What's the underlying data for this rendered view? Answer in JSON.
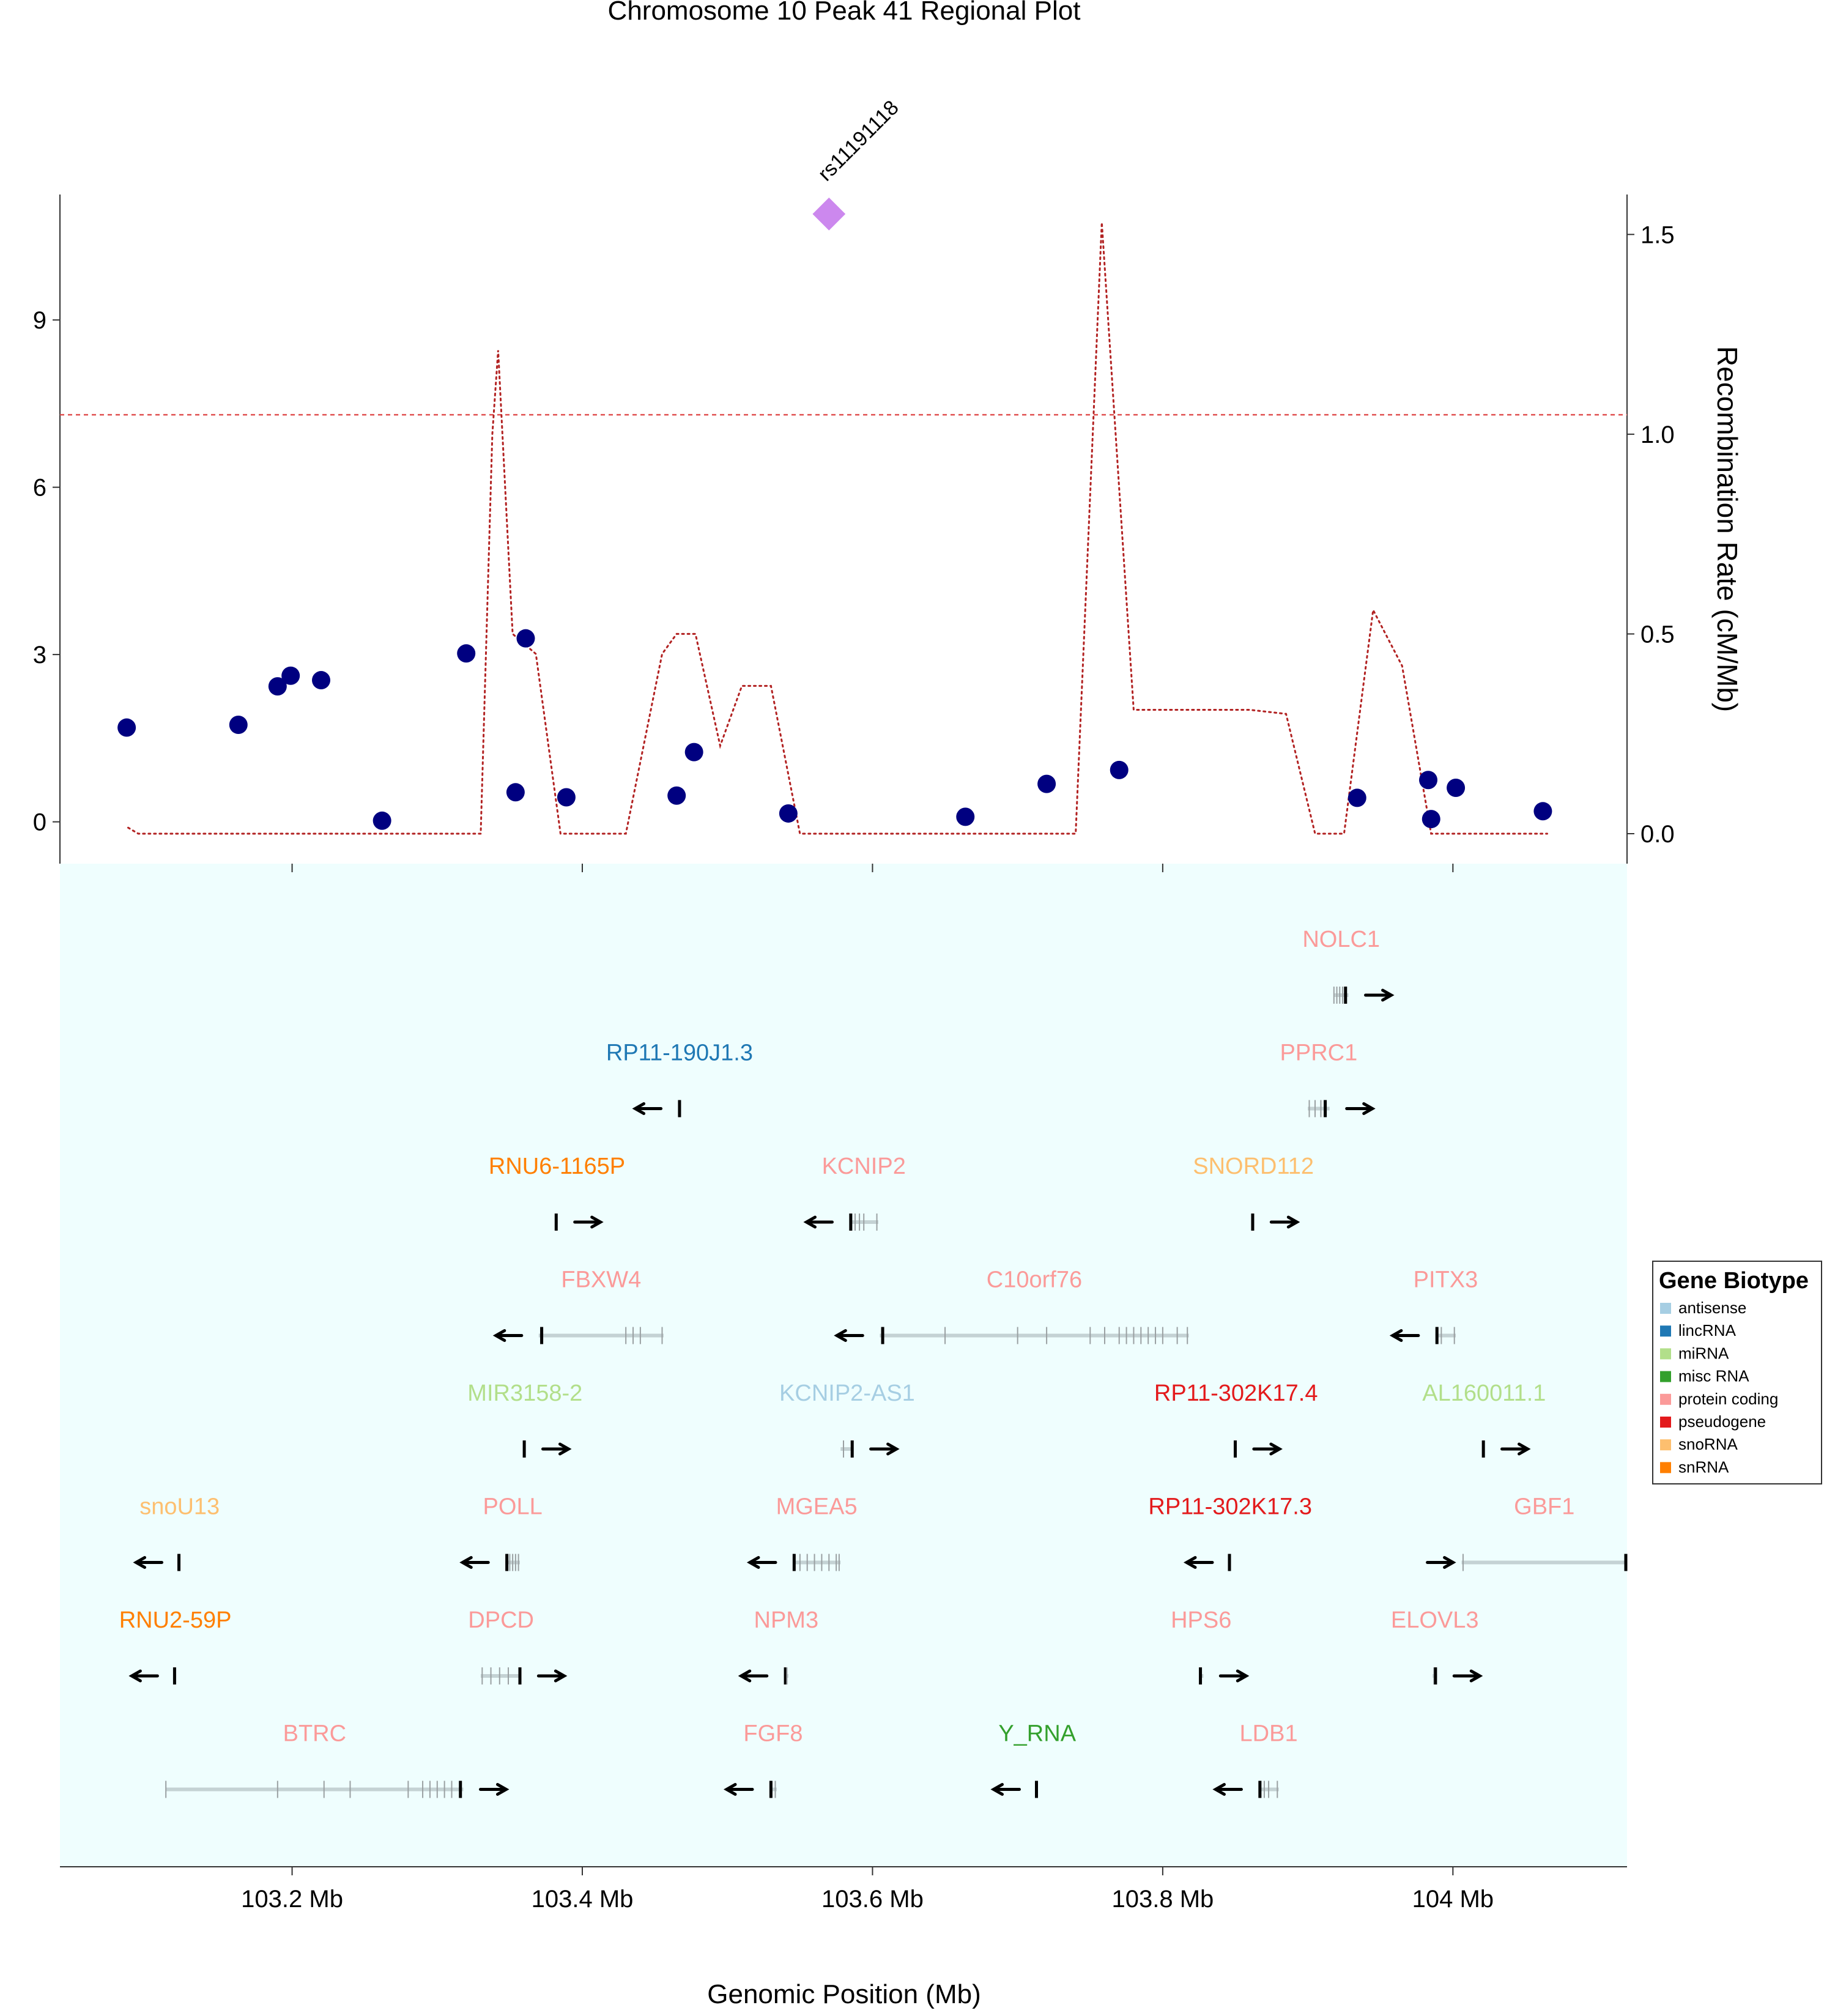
{
  "chart_data": {
    "type": "scatter",
    "title": "Chromosome 10 Peak 41 Regional Plot",
    "xlabel": "Genomic Position (Mb)",
    "y2label": "Recombination Rate (cM/Mb)",
    "xlim": [
      103.04,
      104.12
    ],
    "ylim": [
      -0.75,
      11.25
    ],
    "y2lim": [
      -0.075,
      1.6
    ],
    "x_ticks": [
      103.2,
      103.4,
      103.6,
      103.8,
      104.0
    ],
    "x_tick_labels": [
      "103.2 Mb",
      "103.4 Mb",
      "103.6 Mb",
      "103.8 Mb",
      "104 Mb"
    ],
    "y_ticks": [
      0,
      3,
      6,
      9
    ],
    "y_tick_labels": [
      "0",
      "3",
      "6",
      "9"
    ],
    "y2_ticks": [
      0.0,
      0.5,
      1.0,
      1.5
    ],
    "y2_tick_labels": [
      "0.0",
      "0.5",
      "1.0",
      "1.5"
    ],
    "significance_line": 7.3,
    "lead_snp": {
      "label": "rs11191118",
      "x": 103.57,
      "y": 10.9,
      "color": "#cc88ee"
    },
    "snps": [
      {
        "x": 103.086,
        "y": 1.69
      },
      {
        "x": 103.163,
        "y": 1.74
      },
      {
        "x": 103.19,
        "y": 2.43
      },
      {
        "x": 103.199,
        "y": 2.62
      },
      {
        "x": 103.22,
        "y": 2.54
      },
      {
        "x": 103.262,
        "y": 0.02
      },
      {
        "x": 103.32,
        "y": 3.02
      },
      {
        "x": 103.354,
        "y": 0.53
      },
      {
        "x": 103.361,
        "y": 3.29
      },
      {
        "x": 103.389,
        "y": 0.44
      },
      {
        "x": 103.465,
        "y": 0.47
      },
      {
        "x": 103.477,
        "y": 1.25
      },
      {
        "x": 103.542,
        "y": 0.15
      },
      {
        "x": 103.664,
        "y": 0.09
      },
      {
        "x": 103.72,
        "y": 0.68
      },
      {
        "x": 103.77,
        "y": 0.93
      },
      {
        "x": 103.934,
        "y": 0.43
      },
      {
        "x": 103.983,
        "y": 0.75
      },
      {
        "x": 103.985,
        "y": 0.05
      },
      {
        "x": 104.002,
        "y": 0.61
      },
      {
        "x": 104.062,
        "y": 0.19
      }
    ],
    "recombination": {
      "x": [
        103.087,
        103.094,
        103.33,
        103.338,
        103.342,
        103.352,
        103.368,
        103.385,
        103.4,
        103.43,
        103.455,
        103.465,
        103.478,
        103.495,
        103.51,
        103.53,
        103.55,
        103.74,
        103.758,
        103.78,
        103.86,
        103.885,
        103.905,
        103.925,
        103.945,
        103.965,
        103.985,
        104.065
      ],
      "y": [
        0.015,
        0.0,
        0.0,
        1.0,
        1.21,
        0.5,
        0.45,
        0.0,
        0.0,
        0.0,
        0.45,
        0.5,
        0.5,
        0.22,
        0.37,
        0.37,
        0.0,
        0.0,
        1.53,
        0.31,
        0.31,
        0.3,
        0.0,
        0.0,
        0.56,
        0.42,
        0.0,
        0.0
      ]
    },
    "series": [
      {
        "name": "antisense",
        "color": "#a6cee3"
      },
      {
        "name": "lincRNA",
        "color": "#1f78b4"
      },
      {
        "name": "miRNA",
        "color": "#b2df8a"
      },
      {
        "name": "misc RNA",
        "color": "#33a02c"
      },
      {
        "name": "protein coding",
        "color": "#fb9a99"
      },
      {
        "name": "pseudogene",
        "color": "#e31a1c"
      },
      {
        "name": "snoRNA",
        "color": "#fdbf6f"
      },
      {
        "name": "snRNA",
        "color": "#ff7f00"
      }
    ],
    "legend": {
      "title": "Gene Biotype",
      "position": "right"
    },
    "genes": [
      {
        "name": "NOLC1",
        "biotype": "protein coding",
        "row": 0,
        "start": 103.918,
        "end": 103.928,
        "strand": "+",
        "exons": [
          103.918,
          103.92,
          103.922,
          103.924,
          103.926
        ]
      },
      {
        "name": "RP11-190J1.3",
        "biotype": "lincRNA",
        "row": 1,
        "start": 103.466,
        "end": 103.468,
        "strand": "-",
        "exons": [
          103.467
        ]
      },
      {
        "name": "PPRC1",
        "biotype": "protein coding",
        "row": 1,
        "start": 103.9,
        "end": 103.915,
        "strand": "+",
        "exons": [
          103.901,
          103.905,
          103.909,
          103.912
        ]
      },
      {
        "name": "RNU6-1165P",
        "biotype": "snRNA",
        "row": 2,
        "start": 103.382,
        "end": 103.383,
        "strand": "+",
        "exons": [
          103.382
        ]
      },
      {
        "name": "KCNIP2",
        "biotype": "protein coding",
        "row": 2,
        "start": 103.584,
        "end": 103.604,
        "strand": "-",
        "exons": [
          103.585,
          103.588,
          103.591,
          103.594,
          103.603
        ]
      },
      {
        "name": "SNORD112",
        "biotype": "snoRNA",
        "row": 2,
        "start": 103.862,
        "end": 103.863,
        "strand": "+",
        "exons": [
          103.862
        ]
      },
      {
        "name": "FBXW4",
        "biotype": "protein coding",
        "row": 3,
        "start": 103.37,
        "end": 103.456,
        "strand": "-",
        "exons": [
          103.372,
          103.43,
          103.435,
          103.44,
          103.455
        ]
      },
      {
        "name": "C10orf76",
        "biotype": "protein coding",
        "row": 3,
        "start": 103.605,
        "end": 103.818,
        "strand": "-",
        "exons": [
          103.607,
          103.65,
          103.7,
          103.72,
          103.75,
          103.76,
          103.77,
          103.775,
          103.78,
          103.785,
          103.79,
          103.795,
          103.8,
          103.81,
          103.817
        ]
      },
      {
        "name": "PITX3",
        "biotype": "protein coding",
        "row": 3,
        "start": 103.988,
        "end": 104.002,
        "strand": "-",
        "exons": [
          103.989,
          103.992,
          104.001
        ]
      },
      {
        "name": "MIR3158-2",
        "biotype": "miRNA",
        "row": 4,
        "start": 103.36,
        "end": 103.361,
        "strand": "+",
        "exons": [
          103.36
        ]
      },
      {
        "name": "KCNIP2-AS1",
        "biotype": "antisense",
        "row": 4,
        "start": 103.578,
        "end": 103.587,
        "strand": "+",
        "exons": [
          103.58,
          103.586
        ]
      },
      {
        "name": "RP11-302K17.4",
        "biotype": "pseudogene",
        "row": 4,
        "start": 103.85,
        "end": 103.851,
        "strand": "+",
        "exons": [
          103.85
        ]
      },
      {
        "name": "AL160011.1",
        "biotype": "miRNA",
        "row": 4,
        "start": 104.021,
        "end": 104.022,
        "strand": "+",
        "exons": [
          104.021
        ]
      },
      {
        "name": "snoU13",
        "biotype": "snoRNA",
        "row": 5,
        "start": 103.122,
        "end": 103.123,
        "strand": "-",
        "exons": [
          103.122
        ]
      },
      {
        "name": "POLL",
        "biotype": "protein coding",
        "row": 5,
        "start": 103.347,
        "end": 103.357,
        "strand": "-",
        "exons": [
          103.348,
          103.35,
          103.352,
          103.354,
          103.356
        ]
      },
      {
        "name": "MGEA5",
        "biotype": "protein coding",
        "row": 5,
        "start": 103.545,
        "end": 103.578,
        "strand": "-",
        "exons": [
          103.546,
          103.55,
          103.555,
          103.56,
          103.565,
          103.57,
          103.575,
          103.577
        ]
      },
      {
        "name": "RP11-302K17.3",
        "biotype": "pseudogene",
        "row": 5,
        "start": 103.846,
        "end": 103.847,
        "strand": "-",
        "exons": [
          103.846
        ]
      },
      {
        "name": "GBF1",
        "biotype": "protein coding",
        "row": 5,
        "start": 104.006,
        "end": 104.125,
        "strand": "+",
        "exons": [
          104.007,
          104.12
        ]
      },
      {
        "name": "RNU2-59P",
        "biotype": "snRNA",
        "row": 6,
        "start": 103.119,
        "end": 103.12,
        "strand": "-",
        "exons": [
          103.119
        ]
      },
      {
        "name": "DPCD",
        "biotype": "protein coding",
        "row": 6,
        "start": 103.33,
        "end": 103.358,
        "strand": "+",
        "exons": [
          103.331,
          103.337,
          103.343,
          103.349,
          103.357
        ]
      },
      {
        "name": "NPM3",
        "biotype": "protein coding",
        "row": 6,
        "start": 103.539,
        "end": 103.542,
        "strand": "-",
        "exons": [
          103.54,
          103.541
        ]
      },
      {
        "name": "HPS6",
        "biotype": "protein coding",
        "row": 6,
        "start": 103.825,
        "end": 103.828,
        "strand": "+",
        "exons": [
          103.826
        ]
      },
      {
        "name": "ELOVL3",
        "biotype": "protein coding",
        "row": 6,
        "start": 103.986,
        "end": 103.989,
        "strand": "+",
        "exons": [
          103.987,
          103.988
        ]
      },
      {
        "name": "BTRC",
        "biotype": "protein coding",
        "row": 7,
        "start": 103.113,
        "end": 103.318,
        "strand": "+",
        "exons": [
          103.113,
          103.19,
          103.222,
          103.24,
          103.28,
          103.29,
          103.295,
          103.3,
          103.305,
          103.31,
          103.316
        ]
      },
      {
        "name": "FGF8",
        "biotype": "protein coding",
        "row": 7,
        "start": 103.529,
        "end": 103.534,
        "strand": "-",
        "exons": [
          103.53,
          103.533
        ]
      },
      {
        "name": "Y_RNA",
        "biotype": "misc RNA",
        "row": 7,
        "start": 103.713,
        "end": 103.714,
        "strand": "-",
        "exons": [
          103.713
        ]
      },
      {
        "name": "LDB1",
        "biotype": "protein coding",
        "row": 7,
        "start": 103.866,
        "end": 103.88,
        "strand": "-",
        "exons": [
          103.867,
          103.87,
          103.873,
          103.879
        ]
      }
    ]
  }
}
